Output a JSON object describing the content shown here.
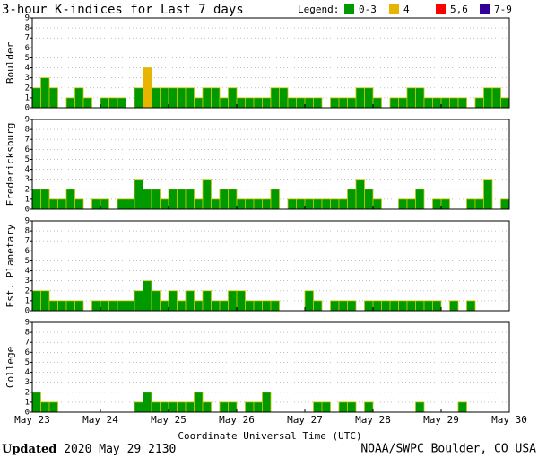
{
  "title": "3-hour K-indices for Last 7 days",
  "legend": {
    "title": "Legend:",
    "items": [
      {
        "name": "0-3",
        "color": "#009900"
      },
      {
        "name": "4",
        "color": "#e8b400"
      },
      {
        "name": "5,6",
        "color": "#ff0000"
      },
      {
        "name": "7-9",
        "color": "#330099"
      }
    ]
  },
  "x_axis": {
    "label": "Coordinate Universal Time (UTC)",
    "ticks": [
      "May 23",
      "May 24",
      "May 25",
      "May 26",
      "May 27",
      "May 28",
      "May 29",
      "May 30"
    ]
  },
  "footer": {
    "updated_label": "Updated",
    "updated_time": "2020 May 29 2130",
    "source": "NOAA/SWPC Boulder, CO USA"
  },
  "chart_data": [
    {
      "type": "bar",
      "y_label": "Boulder",
      "ylim": [
        0,
        9
      ],
      "yticks": [
        0,
        1,
        2,
        3,
        4,
        5,
        6,
        7,
        8,
        9
      ],
      "grid": true,
      "values": [
        2,
        3,
        2,
        0,
        1,
        2,
        1,
        0,
        1,
        1,
        1,
        0,
        2,
        4,
        2,
        2,
        2,
        2,
        2,
        1,
        2,
        2,
        1,
        2,
        1,
        1,
        1,
        1,
        2,
        2,
        1,
        1,
        1,
        1,
        0,
        1,
        1,
        1,
        2,
        2,
        1,
        0,
        1,
        1,
        2,
        2,
        1,
        1,
        1,
        1,
        1,
        0,
        1,
        2,
        2,
        1
      ],
      "colors": [
        "#009900",
        "#009900",
        "#009900",
        "#009900",
        "#009900",
        "#009900",
        "#009900",
        "#009900",
        "#009900",
        "#009900",
        "#009900",
        "#009900",
        "#009900",
        "#e8b400",
        "#009900",
        "#009900",
        "#009900",
        "#009900",
        "#009900",
        "#009900",
        "#009900",
        "#009900",
        "#009900",
        "#009900",
        "#009900",
        "#009900",
        "#009900",
        "#009900",
        "#009900",
        "#009900",
        "#009900",
        "#009900",
        "#009900",
        "#009900",
        "#009900",
        "#009900",
        "#009900",
        "#009900",
        "#009900",
        "#009900",
        "#009900",
        "#009900",
        "#009900",
        "#009900",
        "#009900",
        "#009900",
        "#009900",
        "#009900",
        "#009900",
        "#009900",
        "#009900",
        "#009900",
        "#009900",
        "#009900",
        "#009900",
        "#009900"
      ]
    },
    {
      "type": "bar",
      "y_label": "Fredericksburg",
      "ylim": [
        0,
        9
      ],
      "yticks": [
        0,
        1,
        2,
        3,
        4,
        5,
        6,
        7,
        8,
        9
      ],
      "grid": true,
      "values": [
        2,
        2,
        1,
        1,
        2,
        1,
        0,
        1,
        1,
        0,
        1,
        1,
        3,
        2,
        2,
        1,
        2,
        2,
        2,
        1,
        3,
        1,
        2,
        2,
        1,
        1,
        1,
        1,
        2,
        0,
        1,
        1,
        1,
        1,
        1,
        1,
        1,
        2,
        3,
        2,
        1,
        0,
        0,
        1,
        1,
        2,
        0,
        1,
        1,
        0,
        0,
        1,
        1,
        3,
        0,
        1
      ],
      "colors": [
        "#009900",
        "#009900",
        "#009900",
        "#009900",
        "#009900",
        "#009900",
        "#009900",
        "#009900",
        "#009900",
        "#009900",
        "#009900",
        "#009900",
        "#009900",
        "#009900",
        "#009900",
        "#009900",
        "#009900",
        "#009900",
        "#009900",
        "#009900",
        "#009900",
        "#009900",
        "#009900",
        "#009900",
        "#009900",
        "#009900",
        "#009900",
        "#009900",
        "#009900",
        "#009900",
        "#009900",
        "#009900",
        "#009900",
        "#009900",
        "#009900",
        "#009900",
        "#009900",
        "#009900",
        "#009900",
        "#009900",
        "#009900",
        "#009900",
        "#009900",
        "#009900",
        "#009900",
        "#009900",
        "#009900",
        "#009900",
        "#009900",
        "#009900",
        "#009900",
        "#009900",
        "#009900",
        "#009900",
        "#009900",
        "#009900"
      ]
    },
    {
      "type": "bar",
      "y_label": "Est. Planetary",
      "ylim": [
        0,
        9
      ],
      "yticks": [
        0,
        1,
        2,
        3,
        4,
        5,
        6,
        7,
        8,
        9
      ],
      "grid": true,
      "values": [
        2,
        2,
        1,
        1,
        1,
        1,
        0,
        1,
        1,
        1,
        1,
        1,
        2,
        3,
        2,
        1,
        2,
        1,
        2,
        1,
        2,
        1,
        1,
        2,
        2,
        1,
        1,
        1,
        1,
        0,
        0,
        0,
        2,
        1,
        0,
        1,
        1,
        1,
        0,
        1,
        1,
        1,
        1,
        1,
        1,
        1,
        1,
        1,
        0,
        1,
        0,
        1,
        0,
        0,
        0,
        0
      ],
      "colors": [
        "#009900",
        "#009900",
        "#009900",
        "#009900",
        "#009900",
        "#009900",
        "#009900",
        "#009900",
        "#009900",
        "#009900",
        "#009900",
        "#009900",
        "#009900",
        "#009900",
        "#009900",
        "#009900",
        "#009900",
        "#009900",
        "#009900",
        "#009900",
        "#009900",
        "#009900",
        "#009900",
        "#009900",
        "#009900",
        "#009900",
        "#009900",
        "#009900",
        "#009900",
        "#009900",
        "#009900",
        "#009900",
        "#009900",
        "#009900",
        "#009900",
        "#009900",
        "#009900",
        "#009900",
        "#009900",
        "#009900",
        "#009900",
        "#009900",
        "#009900",
        "#009900",
        "#009900",
        "#009900",
        "#009900",
        "#009900",
        "#009900",
        "#009900",
        "#009900",
        "#009900",
        "#009900",
        "#009900",
        "#009900",
        "#009900"
      ]
    },
    {
      "type": "bar",
      "y_label": "College",
      "ylim": [
        0,
        9
      ],
      "yticks": [
        0,
        1,
        2,
        3,
        4,
        5,
        6,
        7,
        8,
        9
      ],
      "grid": true,
      "values": [
        2,
        1,
        1,
        0,
        0,
        0,
        0,
        0,
        0,
        0,
        0,
        0,
        1,
        2,
        1,
        1,
        1,
        1,
        1,
        2,
        1,
        0,
        1,
        1,
        0,
        1,
        1,
        2,
        0,
        0,
        0,
        0,
        0,
        1,
        1,
        0,
        1,
        1,
        0,
        1,
        0,
        0,
        0,
        0,
        0,
        1,
        0,
        0,
        0,
        0,
        1,
        0,
        0,
        0,
        0,
        0
      ],
      "colors": [
        "#009900",
        "#009900",
        "#009900",
        "#009900",
        "#009900",
        "#009900",
        "#009900",
        "#009900",
        "#009900",
        "#009900",
        "#009900",
        "#009900",
        "#009900",
        "#009900",
        "#009900",
        "#009900",
        "#009900",
        "#009900",
        "#009900",
        "#009900",
        "#009900",
        "#009900",
        "#009900",
        "#009900",
        "#009900",
        "#009900",
        "#009900",
        "#009900",
        "#009900",
        "#009900",
        "#009900",
        "#009900",
        "#009900",
        "#009900",
        "#009900",
        "#009900",
        "#009900",
        "#009900",
        "#009900",
        "#009900",
        "#009900",
        "#009900",
        "#009900",
        "#009900",
        "#009900",
        "#009900",
        "#009900",
        "#009900",
        "#009900",
        "#009900",
        "#009900",
        "#009900",
        "#009900",
        "#009900",
        "#009900",
        "#009900"
      ]
    }
  ]
}
